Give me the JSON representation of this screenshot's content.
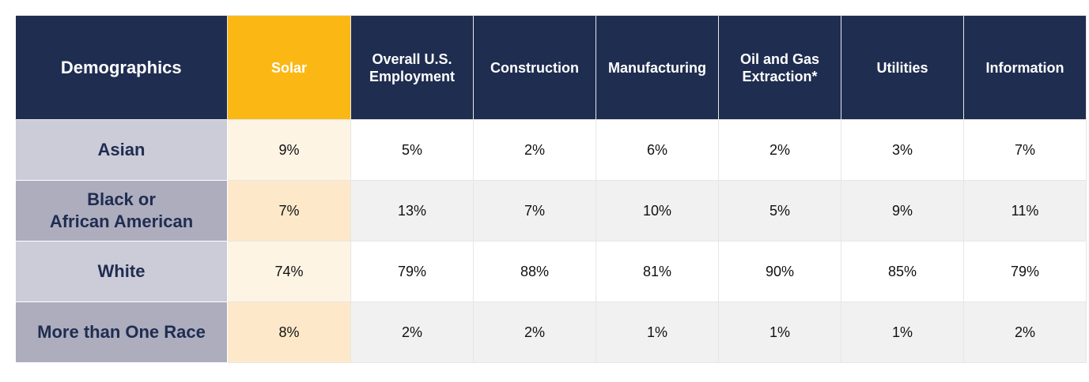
{
  "chart_data": {
    "type": "table",
    "columns": [
      "Demographics",
      "Solar",
      "Overall U.S. Employment",
      "Construction",
      "Manufacturing",
      "Oil and Gas Extraction*",
      "Utilities",
      "Information"
    ],
    "header_lines": [
      [
        "Demographics"
      ],
      [
        "Solar"
      ],
      [
        "Overall U.S.",
        "Employment"
      ],
      [
        "Construction"
      ],
      [
        "Manufacturing"
      ],
      [
        "Oil and Gas",
        "Extraction*"
      ],
      [
        "Utilities"
      ],
      [
        "Information"
      ]
    ],
    "rows": [
      {
        "label": "Asian",
        "label_lines": [
          "Asian"
        ],
        "values": [
          "9%",
          "5%",
          "2%",
          "6%",
          "2%",
          "3%",
          "7%"
        ]
      },
      {
        "label": "Black or African American",
        "label_lines": [
          "Black or",
          "African American"
        ],
        "values": [
          "7%",
          "13%",
          "7%",
          "10%",
          "5%",
          "9%",
          "11%"
        ]
      },
      {
        "label": "White",
        "label_lines": [
          "White"
        ],
        "values": [
          "74%",
          "79%",
          "88%",
          "81%",
          "90%",
          "85%",
          "79%"
        ]
      },
      {
        "label": "More than One Race",
        "label_lines": [
          "More than One Race"
        ],
        "values": [
          "8%",
          "2%",
          "2%",
          "1%",
          "1%",
          "1%",
          "2%"
        ]
      }
    ],
    "highlight_column": "Solar",
    "colors": {
      "header_bg": "#1f2d50",
      "highlight_bg": "#fbb814",
      "row_label_text": "#1f2d50"
    }
  }
}
